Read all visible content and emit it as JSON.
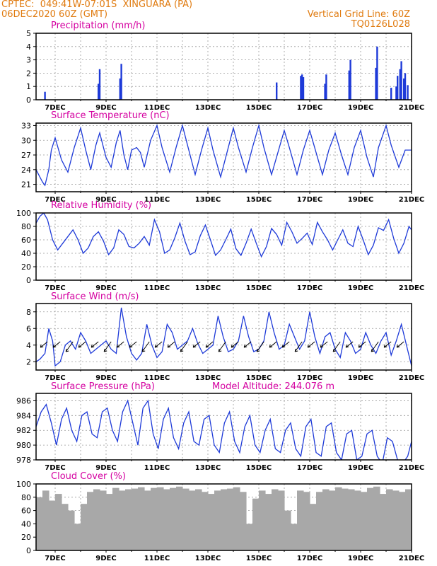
{
  "header": {
    "line1": "CPTEC:  049:41W-07:01S  XINGUARA (PA)",
    "line2": "06DEC2020 60Z (GMT)",
    "right1": "Vertical Grid Line: 60Z",
    "right2": "TQ0126L028"
  },
  "colors": {
    "header": "#e07b10",
    "title": "#d400a0",
    "series": "#1e3ad8",
    "cloud": "#a8a8a8",
    "vector": "#000000"
  },
  "x_ticks": [
    "7DEC",
    "9DEC",
    "11DEC",
    "13DEC",
    "15DEC",
    "17DEC",
    "19DEC",
    "21DEC"
  ],
  "chart_data": [
    {
      "type": "bar",
      "title": "Precipitation (mm/h)",
      "ylim": [
        0,
        5
      ],
      "yticks": [
        0,
        1,
        2,
        3,
        4,
        5
      ],
      "grid": true,
      "x_range_days": [
        6.25,
        21.0
      ],
      "x": [
        6.6,
        8.7,
        8.75,
        9.55,
        9.6,
        15.7,
        16.65,
        16.7,
        16.75,
        17.6,
        17.65,
        18.55,
        18.6,
        19.6,
        19.65,
        20.2,
        20.4,
        20.45,
        20.55,
        20.6,
        20.7,
        20.75,
        20.85
      ],
      "values": [
        0.6,
        1.2,
        2.3,
        1.6,
        2.7,
        1.3,
        1.8,
        1.9,
        1.7,
        1.2,
        1.9,
        2.2,
        3.0,
        2.4,
        4.0,
        0.9,
        1.0,
        1.8,
        2.3,
        2.9,
        1.6,
        2.0,
        1.1
      ]
    },
    {
      "type": "line",
      "title": "Surface Temperature (nC)",
      "ylim": [
        19.5,
        33.5
      ],
      "yticks": [
        21,
        24,
        27,
        30,
        33
      ],
      "grid": true,
      "x": [
        6.25,
        6.5,
        6.6,
        6.75,
        6.85,
        7.0,
        7.25,
        7.5,
        7.75,
        8.0,
        8.2,
        8.4,
        8.6,
        8.75,
        9.0,
        9.2,
        9.4,
        9.55,
        9.7,
        9.85,
        10.0,
        10.2,
        10.35,
        10.5,
        10.75,
        11.0,
        11.2,
        11.5,
        11.75,
        12.0,
        12.2,
        12.5,
        12.75,
        13.0,
        13.2,
        13.5,
        13.75,
        14.0,
        14.2,
        14.5,
        14.75,
        15.0,
        15.2,
        15.5,
        15.75,
        16.0,
        16.2,
        16.5,
        16.75,
        17.0,
        17.25,
        17.5,
        17.75,
        18.0,
        18.25,
        18.5,
        18.75,
        19.0,
        19.25,
        19.5,
        19.7,
        20.0,
        20.2,
        20.5,
        20.75,
        21.0
      ],
      "values": [
        24.0,
        21.5,
        20.8,
        24.0,
        28.0,
        30.5,
        26.0,
        23.5,
        28.5,
        32.5,
        28.0,
        24.0,
        29.0,
        31.5,
        26.5,
        24.5,
        29.5,
        32.0,
        27.0,
        24.0,
        28.0,
        28.5,
        27.5,
        24.5,
        30.0,
        33.0,
        28.5,
        23.5,
        28.5,
        33.0,
        29.0,
        23.0,
        28.0,
        32.5,
        28.0,
        22.5,
        27.5,
        32.5,
        28.5,
        23.5,
        28.5,
        33.0,
        28.5,
        23.0,
        27.5,
        32.0,
        28.5,
        23.0,
        28.0,
        32.0,
        27.5,
        23.0,
        28.0,
        31.5,
        27.0,
        23.0,
        28.5,
        32.0,
        26.5,
        22.5,
        28.5,
        33.0,
        29.0,
        24.5,
        28.0,
        28.0
      ]
    },
    {
      "type": "line",
      "title": "Relative Humidity (%)",
      "ylim": [
        0,
        100
      ],
      "yticks": [
        0,
        20,
        40,
        60,
        80,
        100
      ],
      "grid": true,
      "x": [
        6.25,
        6.4,
        6.55,
        6.7,
        6.9,
        7.1,
        7.3,
        7.5,
        7.7,
        7.9,
        8.1,
        8.3,
        8.5,
        8.7,
        8.9,
        9.1,
        9.3,
        9.5,
        9.7,
        9.9,
        10.1,
        10.3,
        10.5,
        10.7,
        10.9,
        11.1,
        11.3,
        11.5,
        11.7,
        11.9,
        12.1,
        12.3,
        12.5,
        12.7,
        12.9,
        13.1,
        13.3,
        13.5,
        13.7,
        13.9,
        14.1,
        14.3,
        14.5,
        14.7,
        14.9,
        15.1,
        15.3,
        15.5,
        15.7,
        15.9,
        16.1,
        16.3,
        16.5,
        16.7,
        16.9,
        17.1,
        17.3,
        17.5,
        17.7,
        17.9,
        18.1,
        18.3,
        18.5,
        18.7,
        18.9,
        19.1,
        19.3,
        19.5,
        19.7,
        19.9,
        20.1,
        20.3,
        20.5,
        20.7,
        20.9,
        21.0
      ],
      "values": [
        85,
        95,
        100,
        90,
        60,
        45,
        55,
        65,
        75,
        60,
        40,
        48,
        65,
        72,
        58,
        38,
        48,
        75,
        68,
        50,
        48,
        55,
        65,
        52,
        90,
        72,
        40,
        45,
        63,
        85,
        58,
        38,
        42,
        66,
        82,
        60,
        37,
        45,
        60,
        76,
        47,
        37,
        55,
        76,
        55,
        35,
        50,
        77,
        68,
        52,
        86,
        72,
        55,
        62,
        70,
        53,
        86,
        72,
        60,
        45,
        60,
        75,
        55,
        50,
        80,
        60,
        38,
        52,
        78,
        74,
        90,
        62,
        40,
        55,
        80,
        75
      ]
    },
    {
      "type": "line",
      "title": "Surface Wind (m/s)",
      "ylim": [
        1,
        9
      ],
      "yticks": [
        2,
        4,
        6,
        8
      ],
      "grid": true,
      "x": [
        6.25,
        6.4,
        6.6,
        6.75,
        6.9,
        7.0,
        7.2,
        7.4,
        7.6,
        7.8,
        8.0,
        8.2,
        8.4,
        8.6,
        8.8,
        9.0,
        9.2,
        9.4,
        9.6,
        9.8,
        10.0,
        10.2,
        10.4,
        10.6,
        10.8,
        11.0,
        11.2,
        11.4,
        11.6,
        11.8,
        12.0,
        12.2,
        12.4,
        12.6,
        12.8,
        13.0,
        13.2,
        13.4,
        13.6,
        13.8,
        14.0,
        14.2,
        14.4,
        14.6,
        14.8,
        15.0,
        15.2,
        15.4,
        15.6,
        15.8,
        16.0,
        16.2,
        16.4,
        16.6,
        16.8,
        17.0,
        17.2,
        17.4,
        17.6,
        17.8,
        18.0,
        18.2,
        18.4,
        18.6,
        18.8,
        19.0,
        19.2,
        19.4,
        19.6,
        19.8,
        20.0,
        20.2,
        20.4,
        20.6,
        20.8,
        21.0
      ],
      "values": [
        2.0,
        2.3,
        3.0,
        6.0,
        4.5,
        1.5,
        2.0,
        4.0,
        4.5,
        3.5,
        5.5,
        4.5,
        3.0,
        3.5,
        4.0,
        4.5,
        3.5,
        3.0,
        8.5,
        5.0,
        3.0,
        2.2,
        3.0,
        6.5,
        4.0,
        2.5,
        3.2,
        6.5,
        5.5,
        3.5,
        4.0,
        4.5,
        6.0,
        4.2,
        3.0,
        3.5,
        4.0,
        7.5,
        5.0,
        3.2,
        3.5,
        4.5,
        7.5,
        5.0,
        3.2,
        3.5,
        4.5,
        8.0,
        5.5,
        3.5,
        4.0,
        6.5,
        5.0,
        3.5,
        4.5,
        8.0,
        5.0,
        3.0,
        5.0,
        5.5,
        3.5,
        2.5,
        5.5,
        4.5,
        3.0,
        3.5,
        5.5,
        4.0,
        3.0,
        4.5,
        5.5,
        2.8,
        4.5,
        6.5,
        4.0,
        1.5
      ]
    },
    {
      "type": "line",
      "title": "Surface Pressure (hPa)",
      "annotation": "Model Altitude: 244.076 m",
      "ylim": [
        978,
        987
      ],
      "yticks": [
        978,
        980,
        982,
        984,
        986
      ],
      "grid": true,
      "x": [
        6.25,
        6.45,
        6.65,
        6.85,
        7.05,
        7.25,
        7.45,
        7.65,
        7.85,
        8.05,
        8.25,
        8.45,
        8.65,
        8.85,
        9.05,
        9.25,
        9.45,
        9.65,
        9.85,
        10.05,
        10.25,
        10.45,
        10.65,
        10.85,
        11.05,
        11.25,
        11.45,
        11.65,
        11.85,
        12.05,
        12.25,
        12.45,
        12.65,
        12.85,
        13.05,
        13.25,
        13.45,
        13.65,
        13.85,
        14.05,
        14.25,
        14.45,
        14.65,
        14.85,
        15.05,
        15.25,
        15.45,
        15.65,
        15.85,
        16.05,
        16.25,
        16.45,
        16.65,
        16.85,
        17.05,
        17.25,
        17.45,
        17.65,
        17.85,
        18.05,
        18.25,
        18.45,
        18.65,
        18.85,
        19.05,
        19.25,
        19.45,
        19.65,
        19.85,
        20.05,
        20.25,
        20.45,
        20.65,
        20.85,
        21.0
      ],
      "values": [
        982.5,
        984.5,
        985.5,
        983.0,
        980.0,
        983.5,
        985.0,
        982.0,
        980.5,
        984.0,
        984.5,
        981.5,
        981.0,
        984.5,
        985.0,
        982.0,
        980.5,
        984.5,
        986.0,
        983.0,
        980.0,
        985.0,
        986.0,
        981.5,
        979.5,
        983.5,
        985.0,
        981.0,
        979.5,
        983.0,
        984.5,
        980.5,
        980.0,
        983.5,
        984.0,
        980.0,
        979.0,
        983.0,
        984.5,
        980.5,
        979.0,
        982.5,
        984.0,
        980.0,
        979.0,
        982.0,
        983.5,
        979.5,
        979.0,
        982.0,
        983.0,
        979.5,
        978.5,
        982.5,
        983.5,
        979.0,
        978.5,
        982.5,
        983.0,
        979.0,
        978.0,
        981.5,
        982.0,
        978.0,
        978.5,
        981.5,
        982.0,
        978.5,
        977.5,
        981.0,
        980.5,
        978.0,
        977.5,
        978.5,
        980.5
      ]
    },
    {
      "type": "bar",
      "title": "Cloud Cover (%)",
      "ylim": [
        0,
        100
      ],
      "yticks": [
        0,
        20,
        40,
        60,
        80,
        100
      ],
      "grid": true,
      "x": [
        6.25,
        6.5,
        6.75,
        7.0,
        7.25,
        7.5,
        7.75,
        7.9,
        8.0,
        8.25,
        8.5,
        8.75,
        9.0,
        9.25,
        9.5,
        9.75,
        10.0,
        10.25,
        10.5,
        10.75,
        11.0,
        11.25,
        11.5,
        11.75,
        12.0,
        12.25,
        12.5,
        12.75,
        13.0,
        13.25,
        13.5,
        13.75,
        14.0,
        14.25,
        14.5,
        14.75,
        14.9,
        15.0,
        15.25,
        15.5,
        15.75,
        16.0,
        16.25,
        16.5,
        16.75,
        16.85,
        17.0,
        17.25,
        17.5,
        17.75,
        18.0,
        18.25,
        18.5,
        18.75,
        19.0,
        19.25,
        19.5,
        19.75,
        20.0,
        20.25,
        20.5,
        20.75
      ],
      "values": [
        80,
        90,
        75,
        85,
        70,
        60,
        40,
        15,
        70,
        88,
        92,
        90,
        85,
        94,
        90,
        92,
        93,
        95,
        90,
        94,
        95,
        92,
        94,
        96,
        93,
        90,
        92,
        88,
        85,
        90,
        92,
        93,
        95,
        88,
        40,
        78,
        10,
        90,
        85,
        92,
        90,
        60,
        40,
        90,
        88,
        5,
        70,
        88,
        92,
        90,
        95,
        93,
        92,
        90,
        88,
        94,
        96,
        85,
        92,
        90,
        88,
        92
      ]
    }
  ]
}
